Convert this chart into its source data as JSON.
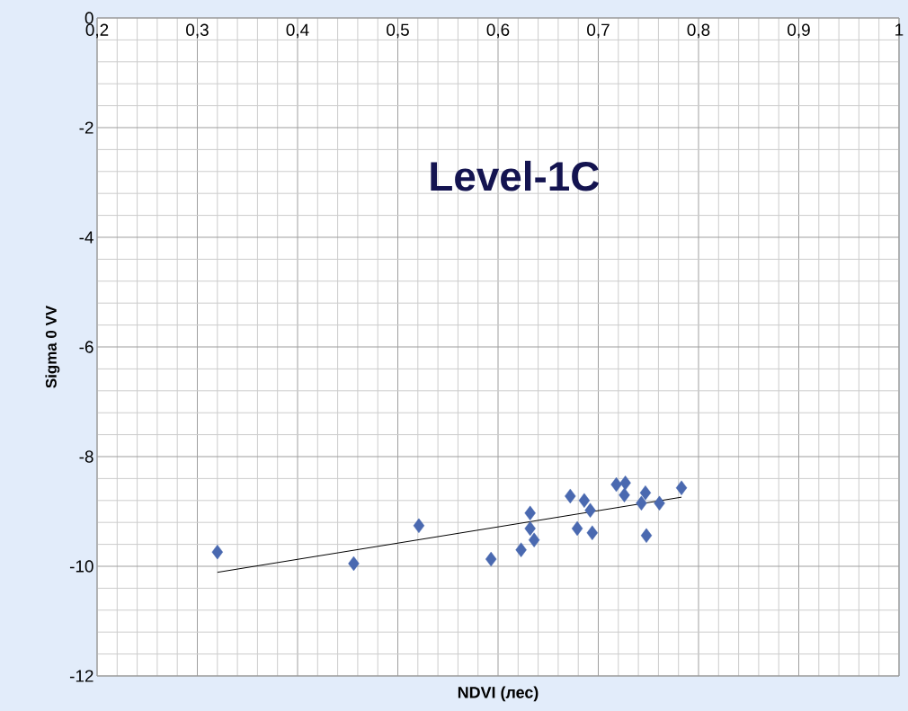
{
  "chart_data": {
    "type": "scatter",
    "xlabel": "NDVI (лес)",
    "ylabel": "Sigma 0  VV",
    "annotations": [
      "Level-1C"
    ],
    "xlim": [
      0.2,
      1
    ],
    "ylim": [
      -12,
      0
    ],
    "xticks": [
      {
        "value": 0.2,
        "label": "0,2"
      },
      {
        "value": 0.3,
        "label": "0,3"
      },
      {
        "value": 0.4,
        "label": "0,4"
      },
      {
        "value": 0.5,
        "label": "0,5"
      },
      {
        "value": 0.6,
        "label": "0,6"
      },
      {
        "value": 0.7,
        "label": "0,7"
      },
      {
        "value": 0.8,
        "label": "0,8"
      },
      {
        "value": 0.9,
        "label": "0,9"
      },
      1
    ],
    "yticks": [
      -12,
      -10,
      -8,
      -6,
      -4,
      -2,
      0
    ],
    "grid": true,
    "series": [
      {
        "marker": "diamond",
        "color": "#4a69b0",
        "x": [
          0.32,
          0.456,
          0.521,
          0.593,
          0.623,
          0.632,
          0.632,
          0.636,
          0.672,
          0.679,
          0.686,
          0.692,
          0.694,
          0.718,
          0.727,
          0.726,
          0.743,
          0.747,
          0.748,
          0.761,
          0.783
        ],
        "values": [
          -9.74,
          -9.95,
          -9.26,
          -9.87,
          -9.7,
          -9.03,
          -9.31,
          -9.52,
          -8.72,
          -9.31,
          -8.8,
          -8.98,
          -9.39,
          -8.51,
          -8.48,
          -8.7,
          -8.85,
          -8.66,
          -9.44,
          -8.85,
          -8.57
        ]
      },
      {
        "type": "line",
        "marker": "none",
        "color": "#000000",
        "x": [
          0.32,
          0.783
        ],
        "values": [
          -10.11,
          -8.74
        ]
      }
    ]
  }
}
